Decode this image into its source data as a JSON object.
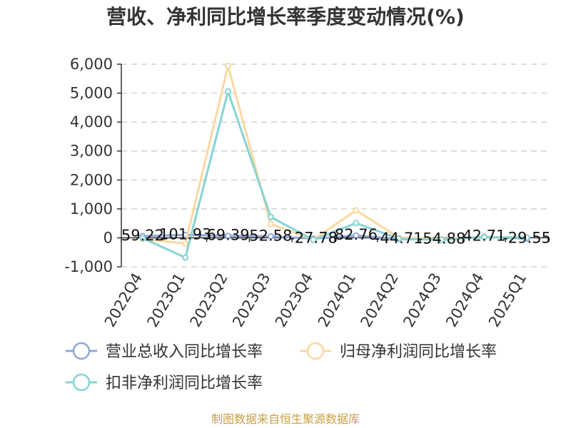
{
  "chart_data": {
    "type": "line",
    "title": "营收、净利同比增长率季度变动情况(%)",
    "categories": [
      "2022Q4",
      "2023Q1",
      "2023Q2",
      "2023Q3",
      "2023Q4",
      "2024Q1",
      "2024Q2",
      "2024Q3",
      "2024Q4",
      "2025Q1"
    ],
    "ylim": [
      -1000,
      6000
    ],
    "yticks": [
      -1000,
      0,
      1000,
      2000,
      3000,
      4000,
      5000,
      6000
    ],
    "ytick_labels": [
      "-1,000",
      "0",
      "1,000",
      "2,000",
      "3,000",
      "4,000",
      "5,000",
      "6,000"
    ],
    "grid": true,
    "legend_position": "bottom",
    "series": [
      {
        "name": "营业总收入同比增长率",
        "color": "#8fa8d8",
        "values": [
          59.22,
          101.93,
          69.39,
          52.58,
          -27.78,
          82.76,
          -44.71,
          -54.88,
          42.71,
          -29.55
        ],
        "labels": [
          "59.22",
          "101.93",
          "69.39",
          "52.58",
          "-27.78",
          "82.76",
          "-44.71",
          "-54.88",
          "42.71",
          "-29.55"
        ]
      },
      {
        "name": "归母净利润同比增长率",
        "color": "#fbd8a0",
        "values": [
          -40,
          -200,
          5940,
          480,
          -60,
          950,
          10,
          -40,
          30,
          20
        ]
      },
      {
        "name": "扣非净利润同比增长率",
        "color": "#86d4d4",
        "values": [
          -10,
          -680,
          5060,
          720,
          -70,
          510,
          -30,
          -70,
          20,
          10
        ]
      }
    ],
    "source": "制图数据来自恒生聚源数据库"
  }
}
